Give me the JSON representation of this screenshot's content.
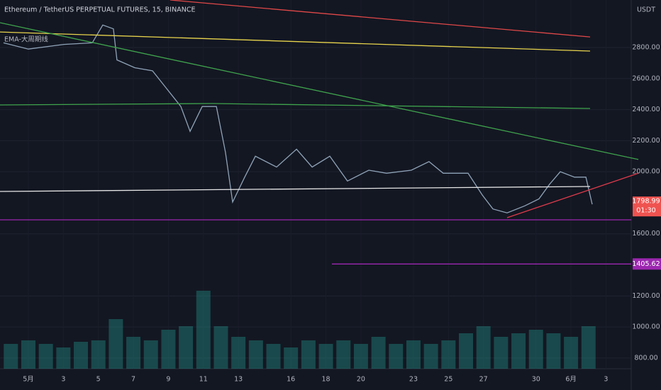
{
  "chart_data": {
    "type": "line",
    "title": "Ethereum / TetherUS PERPETUAL FUTURES, 15, BINANCE",
    "indicator": "EMA-大周期线",
    "unit": "USDT",
    "countdown": "01:30",
    "last_price": 1798.99,
    "last_price_color": "#ef5350",
    "grid": true,
    "xlim": [
      -0.62,
      35.44
    ],
    "xticks": [
      {
        "value": 1,
        "label": "5月"
      },
      3,
      5,
      7,
      9,
      11,
      13,
      16,
      18,
      20,
      23,
      25,
      27,
      30,
      {
        "value": 32,
        "label": "6月"
      },
      {
        "value": 34,
        "label": "3"
      }
    ],
    "ylim": [
      731,
      3106
    ],
    "yticks": [
      {
        "value": 800,
        "label": "800.00"
      },
      {
        "value": 1000,
        "label": "1000.00"
      },
      {
        "value": 1200,
        "label": "1200.00"
      },
      {
        "value": 1600,
        "label": "1600.00"
      },
      {
        "value": 2000,
        "label": "2000.00"
      },
      {
        "value": 2200,
        "label": "2200.00"
      },
      {
        "value": 2400,
        "label": "2400.00"
      },
      {
        "value": 2600,
        "label": "2600.00"
      },
      {
        "value": 2800,
        "label": "2800.00"
      }
    ],
    "y2lim": [
      0,
      520
    ],
    "series": [
      {
        "color": "#8fa3b8",
        "x": [
          -0.42,
          1,
          3.03,
          4.65,
          5.25,
          5.86,
          6.06,
          7.08,
          8.09,
          8.9,
          9.71,
          10.24,
          10.93,
          11.74,
          12.26,
          12.67,
          13.36,
          13.97,
          15.18,
          16.32,
          17.21,
          18.22,
          19.23,
          20.45,
          21.46,
          22.88,
          23.89,
          24.7,
          26.12,
          26.93,
          27.54,
          28.35,
          29.36,
          30.17,
          30.78,
          31.39,
          32.2,
          32.85,
          33.21
        ],
        "values": [
          2830,
          2790,
          2820,
          2830,
          2945,
          2920,
          2720,
          2670,
          2650,
          2535,
          2420,
          2260,
          2420,
          2420,
          2125,
          1805,
          1965,
          2100,
          2030,
          2145,
          2030,
          2100,
          1940,
          2010,
          1990,
          2010,
          2065,
          1990,
          1990,
          1850,
          1760,
          1735,
          1780,
          1825,
          1920,
          2000,
          1965,
          1965,
          1790
        ]
      },
      {
        "color": "#e04848",
        "x": [
          9.1,
          33.09
        ],
        "values": [
          3106,
          2868
        ]
      },
      {
        "color": "#e8d44d",
        "x": [
          -0.62,
          33.09
        ],
        "values": [
          2900,
          2777
        ]
      },
      {
        "color": "#3fa34d",
        "x": [
          -0.62,
          35.85
        ],
        "values": [
          2960,
          2079
        ]
      },
      {
        "color": "#3fa34d",
        "x": [
          -0.62,
          11.5,
          33.09
        ],
        "values": [
          2430,
          2439,
          2407
        ]
      },
      {
        "color": "#e6e6e6",
        "x": [
          -0.62,
          33.09
        ],
        "values": [
          1873,
          1905
        ]
      },
      {
        "color": "#e03a4a",
        "x": [
          28.35,
          35.85
        ],
        "values": [
          1704,
          1990
        ]
      },
      {
        "color": "#9c27b0",
        "x": [
          -0.62,
          35.44
        ],
        "values": [
          1690,
          1690
        ]
      },
      {
        "color": "#9c27b0",
        "x": [
          18.34,
          35.44
        ],
        "values": [
          1405.62,
          1405.62
        ]
      },
      {
        "type": "bar",
        "axis": "y2",
        "color": "#26a69a",
        "x": [
          0,
          1,
          2,
          3,
          4,
          5,
          6,
          7,
          8,
          9,
          10,
          11,
          12,
          13,
          14,
          15,
          16,
          17,
          18,
          19,
          20,
          21,
          22,
          23,
          24,
          25,
          26,
          27,
          28,
          29,
          30,
          31,
          32,
          33
        ],
        "values": [
          35,
          40,
          35,
          30,
          38,
          40,
          70,
          45,
          40,
          55,
          60,
          110,
          60,
          45,
          40,
          35,
          30,
          40,
          35,
          40,
          35,
          45,
          35,
          40,
          35,
          40,
          50,
          60,
          45,
          50,
          55,
          50,
          45,
          60
        ]
      }
    ]
  }
}
